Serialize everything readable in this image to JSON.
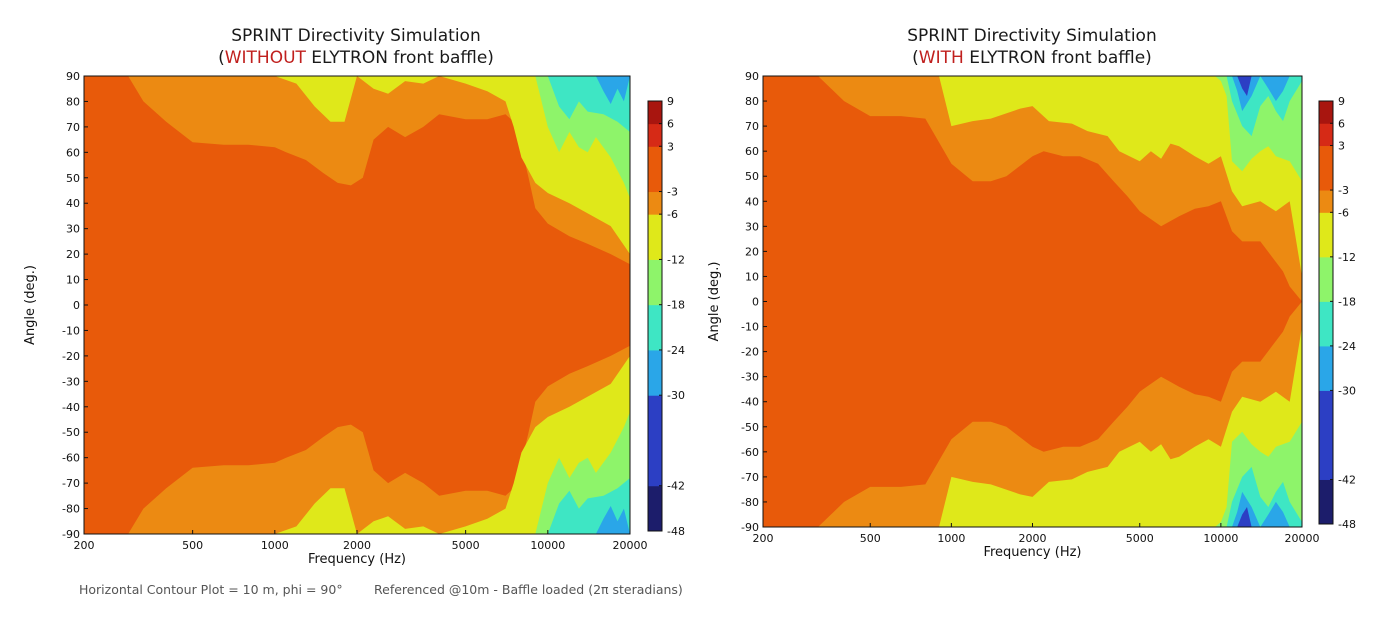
{
  "charts": [
    {
      "title_line1": "SPRINT Directivity Simulation",
      "title_open": "(",
      "title_highlight": "WITHOUT",
      "title_rest": " ELYTRON front baffle)"
    },
    {
      "title_line1": "SPRINT Directivity Simulation",
      "title_open": "(",
      "title_highlight": "WITH",
      "title_rest": " ELYTRON front baffle)"
    }
  ],
  "footer": {
    "left_note": "Horizontal Contour Plot = 10 m, phi = 90°",
    "right_note": "Referenced @10m - Baffle loaded (2π steradians)"
  },
  "colors": {
    "accent_title": "#c0201e",
    "levels": [
      "#1c1d6b",
      "#2c3fc4",
      "#2aa6e8",
      "#3ee6c4",
      "#8ef46a",
      "#dfe81a",
      "#ec8a12",
      "#e85a0a",
      "#d62a16",
      "#a8150f"
    ]
  },
  "chart_data": [
    {
      "type": "heatmap",
      "subtype": "filled-contour",
      "title": "SPRINT Directivity Simulation (WITHOUT ELYTRON front baffle)",
      "xlabel": "Frequency (Hz)",
      "ylabel": "Angle (deg.)",
      "xscale": "log",
      "xlim": [
        200,
        20000
      ],
      "ylim": [
        -90,
        90
      ],
      "xticks": [
        "200",
        "500",
        "1000",
        "2000",
        "5000",
        "10000",
        "20000"
      ],
      "yticks": [
        "90",
        "80",
        "70",
        "60",
        "50",
        "40",
        "30",
        "20",
        "10",
        "0",
        "-10",
        "-20",
        "-30",
        "-40",
        "-50",
        "-60",
        "-70",
        "-80",
        "-90"
      ],
      "colorbar_ticks": [
        "9",
        "6",
        "3",
        "-3",
        "-6",
        "-12",
        "-18",
        "-24",
        "-30",
        "-42",
        "-48"
      ],
      "level_bounds": [
        -48,
        -42,
        -30,
        -24,
        -18,
        -12,
        -6,
        -3,
        3,
        6,
        9
      ],
      "contours": [
        {
          "level": "-3",
          "freq": [
            200,
            290,
            330,
            400,
            500,
            650,
            800,
            1000,
            1100,
            1300,
            1500,
            1700,
            1900,
            2100,
            2300,
            2600,
            3000,
            3500,
            4000,
            5000,
            6000,
            7000,
            7500,
            8000,
            8500,
            9000,
            10000,
            12000,
            14000,
            17000,
            20000
          ],
          "angle": [
            90,
            90,
            80,
            72,
            64,
            63,
            63,
            62,
            60,
            57,
            52,
            48,
            47,
            50,
            65,
            70,
            66,
            70,
            75,
            73,
            73,
            75,
            72,
            62,
            50,
            38,
            32,
            27,
            24,
            20,
            16
          ]
        },
        {
          "level": "-6",
          "freq": [
            200,
            1000,
            1200,
            1400,
            1600,
            1800,
            2000,
            2300,
            2600,
            3000,
            3500,
            4000,
            5000,
            6000,
            7000,
            7500,
            8000,
            9000,
            10000,
            12000,
            14000,
            17000,
            20000
          ],
          "angle": [
            90,
            90,
            87,
            78,
            72,
            72,
            90,
            85,
            83,
            88,
            87,
            90,
            87,
            84,
            80,
            70,
            58,
            48,
            44,
            40,
            36,
            31,
            20
          ]
        },
        {
          "level": "-12",
          "freq": [
            9000,
            10000,
            11000,
            12000,
            13000,
            14000,
            15000,
            17000,
            19000,
            20000
          ],
          "angle": [
            90,
            70,
            60,
            68,
            62,
            60,
            66,
            58,
            48,
            42
          ]
        },
        {
          "level": "-18",
          "freq": [
            10000,
            11000,
            12000,
            13000,
            14000,
            16000,
            18000,
            20000
          ],
          "angle": [
            90,
            78,
            73,
            80,
            76,
            75,
            72,
            68
          ]
        },
        {
          "level": "-24",
          "freq": [
            15000,
            16000,
            17000,
            18000,
            19000,
            20000
          ],
          "angle": [
            90,
            84,
            79,
            85,
            80,
            90
          ]
        }
      ]
    },
    {
      "type": "heatmap",
      "subtype": "filled-contour",
      "title": "SPRINT Directivity Simulation (WITH ELYTRON front baffle)",
      "xlabel": "Frequency (Hz)",
      "ylabel": "Angle (deg.)",
      "xscale": "log",
      "xlim": [
        200,
        20000
      ],
      "ylim": [
        -90,
        90
      ],
      "xticks": [
        "200",
        "500",
        "1000",
        "2000",
        "5000",
        "10000",
        "20000"
      ],
      "yticks": [
        "90",
        "80",
        "70",
        "60",
        "50",
        "40",
        "30",
        "20",
        "10",
        "0",
        "-10",
        "-20",
        "-30",
        "-40",
        "-50",
        "-60",
        "-70",
        "-80",
        "-90"
      ],
      "colorbar_ticks": [
        "9",
        "6",
        "3",
        "-3",
        "-6",
        "-12",
        "-18",
        "-24",
        "-30",
        "-42",
        "-48"
      ],
      "level_bounds": [
        -48,
        -42,
        -30,
        -24,
        -18,
        -12,
        -6,
        -3,
        3,
        6,
        9
      ],
      "contours": [
        {
          "level": "-3",
          "freq": [
            200,
            320,
            400,
            500,
            650,
            800,
            1000,
            1200,
            1400,
            1600,
            2000,
            2200,
            2600,
            3000,
            3500,
            4000,
            4500,
            5000,
            6000,
            7000,
            8000,
            9000,
            10000,
            11000,
            12000,
            14000,
            17000,
            18000,
            20000
          ],
          "angle": [
            90,
            90,
            80,
            74,
            74,
            73,
            55,
            48,
            48,
            50,
            58,
            60,
            58,
            58,
            55,
            48,
            42,
            36,
            30,
            34,
            37,
            38,
            40,
            28,
            24,
            24,
            12,
            6,
            0
          ]
        },
        {
          "level": "-6",
          "freq": [
            200,
            900,
            1000,
            1200,
            1400,
            1800,
            2000,
            2300,
            2800,
            3200,
            3800,
            4200,
            5000,
            5500,
            6000,
            6500,
            7000,
            8000,
            9000,
            10000,
            11000,
            12000,
            14000,
            16000,
            18000,
            20000
          ],
          "angle": [
            90,
            90,
            70,
            72,
            73,
            77,
            78,
            72,
            71,
            68,
            66,
            60,
            56,
            60,
            57,
            63,
            62,
            58,
            55,
            58,
            44,
            38,
            40,
            36,
            40,
            10
          ]
        },
        {
          "level": "-12",
          "freq": [
            9500,
            10000,
            10500,
            11000,
            12000,
            13000,
            14000,
            15000,
            16000,
            18000,
            20000
          ],
          "angle": [
            90,
            88,
            82,
            56,
            52,
            57,
            60,
            62,
            58,
            56,
            48
          ]
        },
        {
          "level": "-18",
          "freq": [
            10500,
            11000,
            12000,
            13000,
            14000,
            15000,
            16000,
            17000,
            18000,
            20000
          ],
          "angle": [
            90,
            80,
            70,
            66,
            78,
            82,
            76,
            72,
            80,
            88
          ]
        },
        {
          "level": "-24",
          "freq": [
            11000,
            11500,
            12000,
            13000,
            14000,
            15000,
            16000,
            17000,
            18000
          ],
          "angle": [
            90,
            84,
            76,
            82,
            90,
            85,
            80,
            84,
            90
          ]
        },
        {
          "level": "-30",
          "freq": [
            11500,
            12000,
            12500,
            13000
          ],
          "angle": [
            90,
            85,
            82,
            90
          ]
        }
      ]
    }
  ]
}
